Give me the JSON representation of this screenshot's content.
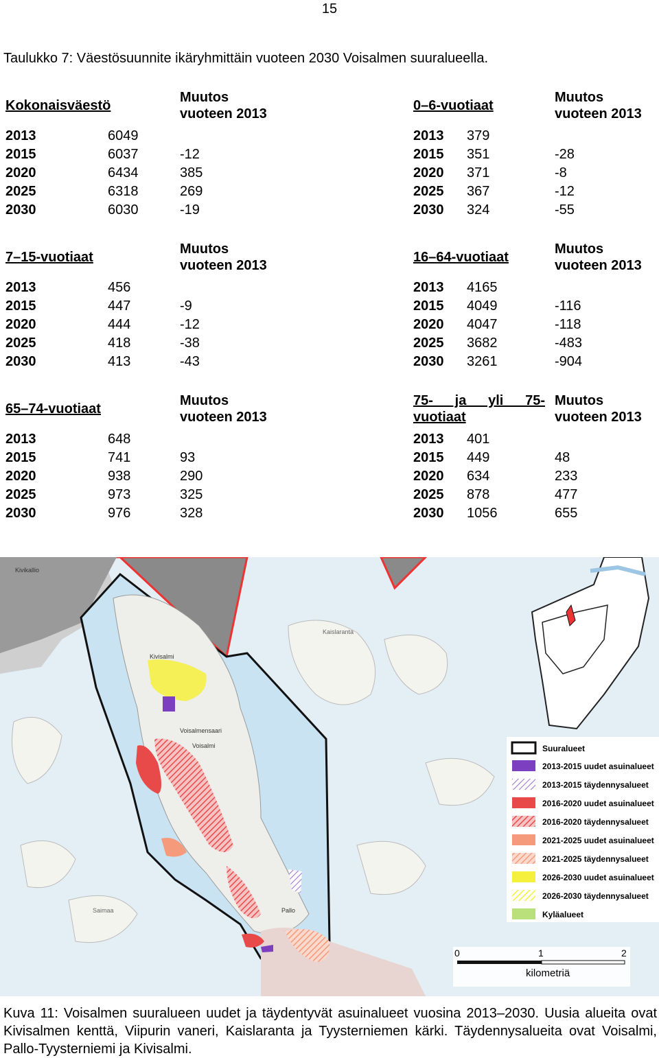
{
  "page_number": "15",
  "table_caption": "Taulukko 7: Väestösuunnite ikäryhmittäin vuoteen 2030 Voisalmen suuralueella.",
  "change_header_line1": "Muutos",
  "change_header_line2": "vuoteen 2013",
  "tables": [
    {
      "title": "Kokonaisväestö",
      "rows": [
        {
          "year": "2013",
          "value": "6049",
          "change": ""
        },
        {
          "year": "2015",
          "value": "6037",
          "change": "-12"
        },
        {
          "year": "2020",
          "value": "6434",
          "change": "385"
        },
        {
          "year": "2025",
          "value": "6318",
          "change": "269"
        },
        {
          "year": "2030",
          "value": "6030",
          "change": "-19"
        }
      ]
    },
    {
      "title": "0–6-vuotiaat",
      "rows": [
        {
          "year": "2013",
          "value": "379",
          "change": ""
        },
        {
          "year": "2015",
          "value": "351",
          "change": "-28"
        },
        {
          "year": "2020",
          "value": "371",
          "change": "-8"
        },
        {
          "year": "2025",
          "value": "367",
          "change": "-12"
        },
        {
          "year": "2030",
          "value": "324",
          "change": "-55"
        }
      ]
    },
    {
      "title": "7–15-vuotiaat",
      "rows": [
        {
          "year": "2013",
          "value": "456",
          "change": ""
        },
        {
          "year": "2015",
          "value": "447",
          "change": "-9"
        },
        {
          "year": "2020",
          "value": "444",
          "change": "-12"
        },
        {
          "year": "2025",
          "value": "418",
          "change": "-38"
        },
        {
          "year": "2030",
          "value": "413",
          "change": "-43"
        }
      ]
    },
    {
      "title": "16–64-vuotiaat",
      "rows": [
        {
          "year": "2013",
          "value": "4165",
          "change": ""
        },
        {
          "year": "2015",
          "value": "4049",
          "change": "-116"
        },
        {
          "year": "2020",
          "value": "4047",
          "change": "-118"
        },
        {
          "year": "2025",
          "value": "3682",
          "change": "-483"
        },
        {
          "year": "2030",
          "value": "3261",
          "change": "-904"
        }
      ]
    },
    {
      "title": "65–74-vuotiaat",
      "rows": [
        {
          "year": "2013",
          "value": "648",
          "change": ""
        },
        {
          "year": "2015",
          "value": "741",
          "change": "93"
        },
        {
          "year": "2020",
          "value": "938",
          "change": "290"
        },
        {
          "year": "2025",
          "value": "973",
          "change": "325"
        },
        {
          "year": "2030",
          "value": "976",
          "change": "328"
        }
      ]
    },
    {
      "title_line1": "75- ja yli 75-",
      "title_line2": "vuotiaat",
      "rows": [
        {
          "year": "2013",
          "value": "401",
          "change": ""
        },
        {
          "year": "2015",
          "value": "449",
          "change": "48"
        },
        {
          "year": "2020",
          "value": "634",
          "change": "233"
        },
        {
          "year": "2025",
          "value": "878",
          "change": "477"
        },
        {
          "year": "2030",
          "value": "1056",
          "change": "655"
        }
      ]
    }
  ],
  "map": {
    "place_labels": [
      "Kivisalmi",
      "Voisalmensaari",
      "Voisalmi",
      "Pallo",
      "Kivikallio",
      "Kaislaranta",
      "Saimaa"
    ],
    "legend": [
      {
        "label": "Suuralueet",
        "color": "#ffffff",
        "style": "outline"
      },
      {
        "label": "2013-2015 uudet asuinalueet",
        "color": "#7b3fbf",
        "style": "solid"
      },
      {
        "label": "2013-2015 täydennysalueet",
        "color": "#9d6fd6",
        "style": "hatch"
      },
      {
        "label": "2016-2020 uudet asuinalueet",
        "color": "#e84a4a",
        "style": "solid"
      },
      {
        "label": "2016-2020 täydennysalueet",
        "color": "#e84a4a",
        "style": "hatch"
      },
      {
        "label": "2021-2025 uudet asuinalueet",
        "color": "#f59a7a",
        "style": "solid"
      },
      {
        "label": "2021-2025 täydennysalueet",
        "color": "#f59a7a",
        "style": "hatch"
      },
      {
        "label": "2026-2030 uudet asuinalueet",
        "color": "#f5f03c",
        "style": "solid"
      },
      {
        "label": "2026-2030 täydennysalueet",
        "color": "#f5f03c",
        "style": "hatch"
      },
      {
        "label": "Kyläalueet",
        "color": "#b9e07a",
        "style": "solid"
      }
    ],
    "scale": {
      "ticks": [
        "0",
        "1",
        "2"
      ],
      "unit": "kilometriä"
    }
  },
  "figure_caption": "Kuva 11: Voisalmen suuralueen uudet ja täydentyvät asuinalueet vuosina 2013–2030. Uusia alueita ovat Kivisalmen kenttä, Viipurin vaneri, Kaislaranta ja Tyysterniemen kärki. Täydennysalueita ovat Voisalmi, Pallo-Tyysterniemi ja Kivisalmi."
}
